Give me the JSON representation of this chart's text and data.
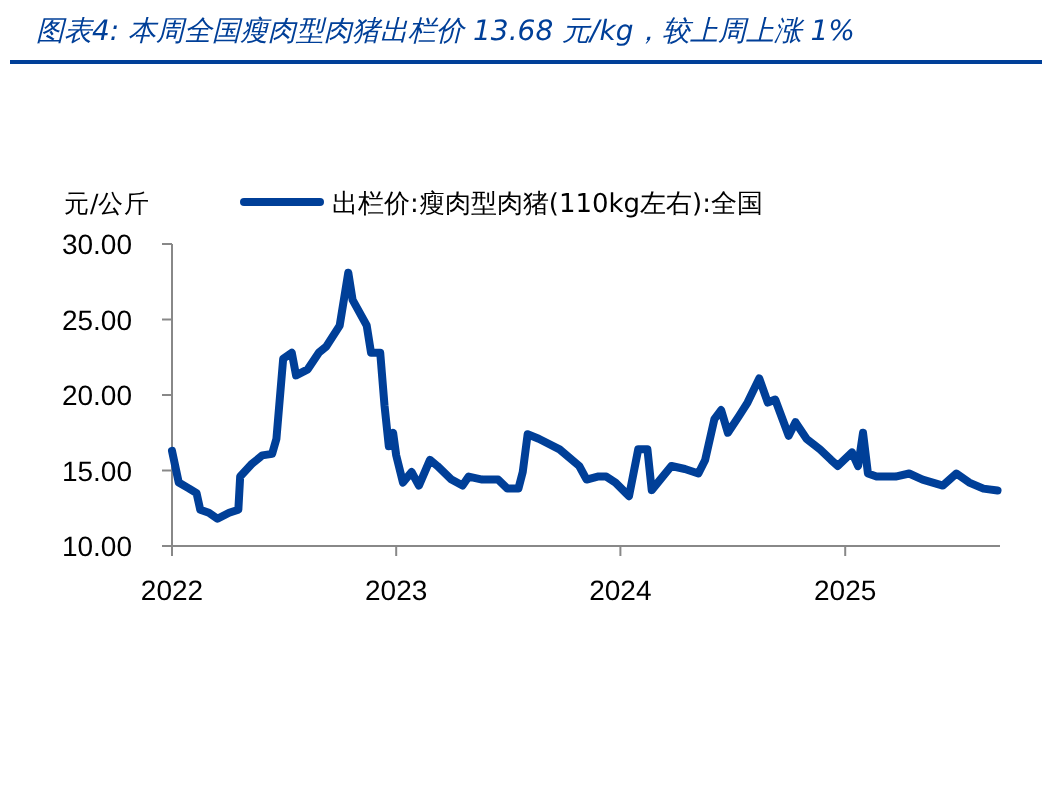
{
  "chart_data": {
    "type": "line",
    "title": "图表4:  本周全国瘦肉型肉猪出栏价 13.68 元/kg，较上周上涨 1%",
    "ylabel": "元/公斤",
    "legend": "top",
    "xlim": [
      "2022-01-01",
      "2025-09-10"
    ],
    "xticks": [
      "2022",
      "2023",
      "2024",
      "2025"
    ],
    "ylim": [
      10,
      30
    ],
    "yticks": [
      {
        "value": 10,
        "label": "10.00"
      },
      {
        "value": 15,
        "label": "15.00"
      },
      {
        "value": 20,
        "label": "20.00"
      },
      {
        "value": 25,
        "label": "25.00"
      },
      {
        "value": 30,
        "label": "30.00"
      }
    ],
    "series": [
      {
        "name": "出栏价:瘦肉型肉猪(110kg左右):全国",
        "color": "#003f98",
        "x": [
          "2022-01-01",
          "2022-01-12",
          "2022-01-29",
          "2022-02-10",
          "2022-02-16",
          "2022-03-02",
          "2022-03-16",
          "2022-04-04",
          "2022-04-19",
          "2022-04-22",
          "2022-05-10",
          "2022-05-28",
          "2022-06-13",
          "2022-06-20",
          "2022-07-01",
          "2022-07-15",
          "2022-07-22",
          "2022-08-10",
          "2022-08-28",
          "2022-09-09",
          "2022-10-01",
          "2022-10-15",
          "2022-10-22",
          "2022-11-14",
          "2022-11-21",
          "2022-12-06",
          "2022-12-13",
          "2022-12-20",
          "2022-12-27",
          "2023-01-01",
          "2023-01-12",
          "2023-01-26",
          "2023-02-07",
          "2023-02-25",
          "2023-03-09",
          "2023-04-01",
          "2023-04-19",
          "2023-04-29",
          "2023-05-21",
          "2023-06-16",
          "2023-07-01",
          "2023-07-19",
          "2023-07-26",
          "2023-08-03",
          "2023-08-21",
          "2023-09-24",
          "2023-10-26",
          "2023-11-07",
          "2023-11-25",
          "2023-12-09",
          "2023-12-24",
          "2024-01-15",
          "2024-01-30",
          "2024-02-14",
          "2024-02-21",
          "2024-03-24",
          "2024-04-15",
          "2024-05-07",
          "2024-05-18",
          "2024-06-02",
          "2024-06-13",
          "2024-06-24",
          "2024-07-12",
          "2024-07-26",
          "2024-08-14",
          "2024-08-28",
          "2024-09-09",
          "2024-10-01",
          "2024-10-12",
          "2024-10-30",
          "2024-11-21",
          "2024-12-09",
          "2024-12-20",
          "2025-01-12",
          "2025-01-22",
          "2025-01-30",
          "2025-02-07",
          "2025-02-21",
          "2025-03-24",
          "2025-04-15",
          "2025-05-07",
          "2025-06-09",
          "2025-07-01",
          "2025-07-22",
          "2025-08-14",
          "2025-09-06"
        ],
        "values": [
          16.3,
          14.2,
          13.8,
          13.5,
          12.4,
          12.2,
          11.8,
          12.2,
          12.4,
          14.6,
          15.4,
          16.0,
          16.1,
          17.1,
          22.4,
          22.8,
          21.3,
          21.7,
          22.8,
          23.2,
          24.6,
          28.1,
          26.3,
          24.6,
          22.8,
          22.8,
          19.3,
          16.6,
          17.5,
          16.0,
          14.2,
          14.9,
          14.0,
          15.7,
          15.3,
          14.4,
          14.0,
          14.6,
          14.4,
          14.4,
          13.8,
          13.8,
          14.9,
          17.4,
          17.1,
          16.4,
          15.3,
          14.4,
          14.6,
          14.6,
          14.2,
          13.3,
          16.4,
          16.4,
          13.7,
          15.3,
          15.1,
          14.8,
          15.7,
          18.4,
          19.0,
          17.5,
          18.6,
          19.5,
          21.1,
          19.5,
          19.7,
          17.3,
          18.2,
          17.1,
          16.4,
          15.7,
          15.3,
          16.2,
          15.3,
          17.5,
          14.8,
          14.6,
          14.6,
          14.8,
          14.4,
          14.0,
          14.8,
          14.2,
          13.8,
          13.68
        ]
      }
    ]
  }
}
